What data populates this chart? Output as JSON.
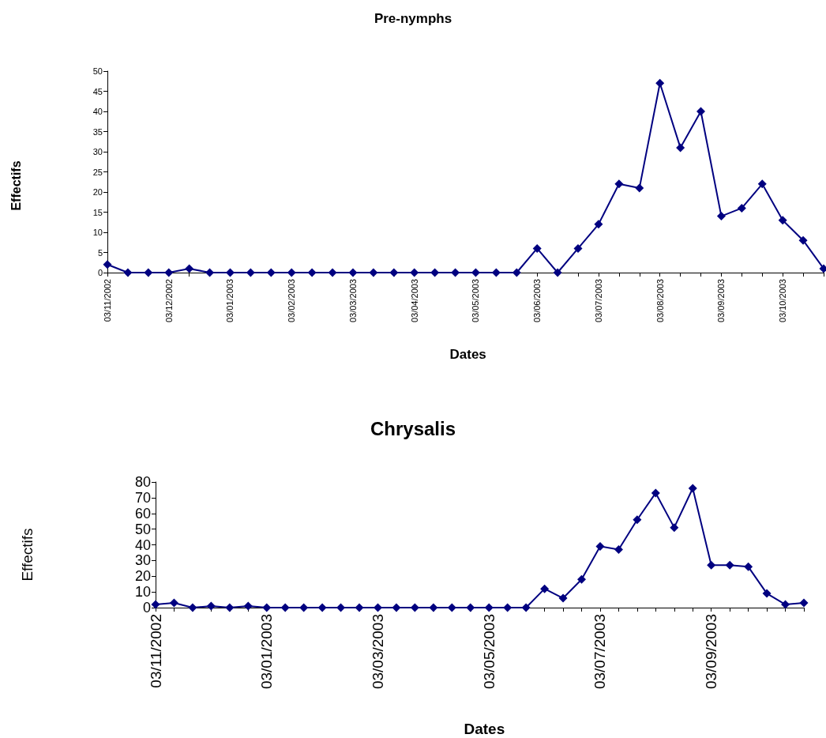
{
  "chart_data": [
    {
      "type": "line",
      "title": "Pre-nymphs",
      "xlabel": "Dates",
      "ylabel": "Effectifs",
      "categories": [
        "03/11/2002",
        null,
        null,
        "03/12/2002",
        null,
        null,
        "03/01/2003",
        null,
        null,
        "03/02/2003",
        null,
        null,
        "03/03/2003",
        null,
        null,
        "03/04/2003",
        null,
        null,
        "03/05/2003",
        null,
        null,
        "03/06/2003",
        null,
        null,
        "03/07/2003",
        null,
        null,
        "03/08/2003",
        null,
        null,
        "03/09/2003",
        null,
        null,
        "03/10/2003",
        null,
        null
      ],
      "series": [
        {
          "color": "#000080",
          "values": [
            2,
            0,
            0,
            0,
            1,
            0,
            0,
            0,
            0,
            0,
            0,
            0,
            0,
            0,
            0,
            0,
            0,
            0,
            0,
            0,
            0,
            6,
            0,
            6,
            12,
            22,
            21,
            47,
            31,
            40,
            14,
            16,
            22,
            13,
            8,
            1
          ]
        }
      ],
      "ylim": [
        0,
        50
      ],
      "yticks": [
        0,
        5,
        10,
        15,
        20,
        25,
        30,
        35,
        40,
        45,
        50
      ],
      "grid": false,
      "marker": "diamond",
      "line_style": "solid"
    },
    {
      "type": "line",
      "title": "Chrysalis",
      "xlabel": "Dates",
      "ylabel": "Effectifs",
      "categories": [
        "03/11/2002",
        null,
        null,
        null,
        null,
        null,
        "03/01/2003",
        null,
        null,
        null,
        null,
        null,
        "03/03/2003",
        null,
        null,
        null,
        null,
        null,
        "03/05/2003",
        null,
        null,
        null,
        null,
        null,
        "03/07/2003",
        null,
        null,
        null,
        null,
        null,
        "03/09/2003",
        null,
        null,
        null,
        null,
        null
      ],
      "series": [
        {
          "color": "#000080",
          "values": [
            2,
            3,
            0,
            1,
            0,
            1,
            0,
            0,
            0,
            0,
            0,
            0,
            0,
            0,
            0,
            0,
            0,
            0,
            0,
            0,
            0,
            12,
            6,
            18,
            39,
            37,
            56,
            73,
            51,
            76,
            27,
            27,
            26,
            9,
            2,
            3
          ]
        }
      ],
      "ylim": [
        0,
        80
      ],
      "yticks": [
        0,
        10,
        20,
        30,
        40,
        50,
        60,
        70,
        80
      ],
      "grid": false,
      "marker": "diamond",
      "line_style": "solid"
    }
  ]
}
